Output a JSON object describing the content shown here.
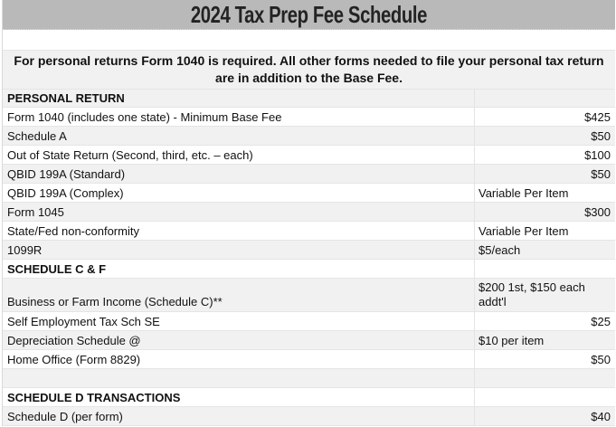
{
  "title": "2024 Tax Prep Fee Schedule",
  "notice": "For personal returns Form 1040 is required. All other forms needed to file your personal tax return are in addition to the Base Fee.",
  "colors": {
    "title_bg": "#b9b9b9",
    "band_gray": "#f1f1f1",
    "band_white": "#ffffff",
    "gridline": "#e5e5e5",
    "text": "#111111"
  },
  "table": {
    "sections": [
      "PERSONAL RETURN",
      "SCHEDULE C & F",
      "SCHEDULE D TRANSACTIONS"
    ],
    "rows": [
      {
        "kind": "spacer",
        "label": "",
        "fee": ""
      },
      {
        "kind": "notice",
        "label": "",
        "fee": ""
      },
      {
        "kind": "section",
        "label": "PERSONAL RETURN",
        "fee": ""
      },
      {
        "kind": "item",
        "label": "Form 1040 (includes one state) - Minimum Base Fee",
        "fee": "$425",
        "fee_align": "right"
      },
      {
        "kind": "item",
        "label": "Schedule A",
        "fee": "$50",
        "fee_align": "right"
      },
      {
        "kind": "item",
        "label": "Out of State Return (Second, third, etc. – each)",
        "fee": "$100",
        "fee_align": "right"
      },
      {
        "kind": "item",
        "label": "QBID 199A (Standard)",
        "fee": "$50",
        "fee_align": "right"
      },
      {
        "kind": "item",
        "label": "QBID 199A (Complex)",
        "fee": "Variable Per Item",
        "fee_align": "left"
      },
      {
        "kind": "item",
        "label": "Form 1045",
        "fee": "$300",
        "fee_align": "right"
      },
      {
        "kind": "item",
        "label": "State/Fed non-conformity",
        "fee": "Variable Per Item",
        "fee_align": "left"
      },
      {
        "kind": "item",
        "label": "1099R",
        "fee": "$5/each",
        "fee_align": "left"
      },
      {
        "kind": "section",
        "label": "SCHEDULE C & F",
        "fee": ""
      },
      {
        "kind": "item",
        "label": "Business or Farm Income (Schedule C)**",
        "fee": "$200 1st, $150 each addt'l",
        "fee_align": "left"
      },
      {
        "kind": "item",
        "label": "Self Employment Tax Sch SE",
        "fee": "$25",
        "fee_align": "right"
      },
      {
        "kind": "item",
        "label": "Depreciation Schedule @",
        "fee": "$10 per item",
        "fee_align": "left"
      },
      {
        "kind": "item",
        "label": "Home Office (Form 8829)",
        "fee": "$50",
        "fee_align": "right"
      },
      {
        "kind": "empty",
        "label": "",
        "fee": ""
      },
      {
        "kind": "section",
        "label": "SCHEDULE D TRANSACTIONS",
        "fee": ""
      },
      {
        "kind": "item",
        "label": "Schedule D (per form)",
        "fee": "$40",
        "fee_align": "right"
      }
    ]
  }
}
